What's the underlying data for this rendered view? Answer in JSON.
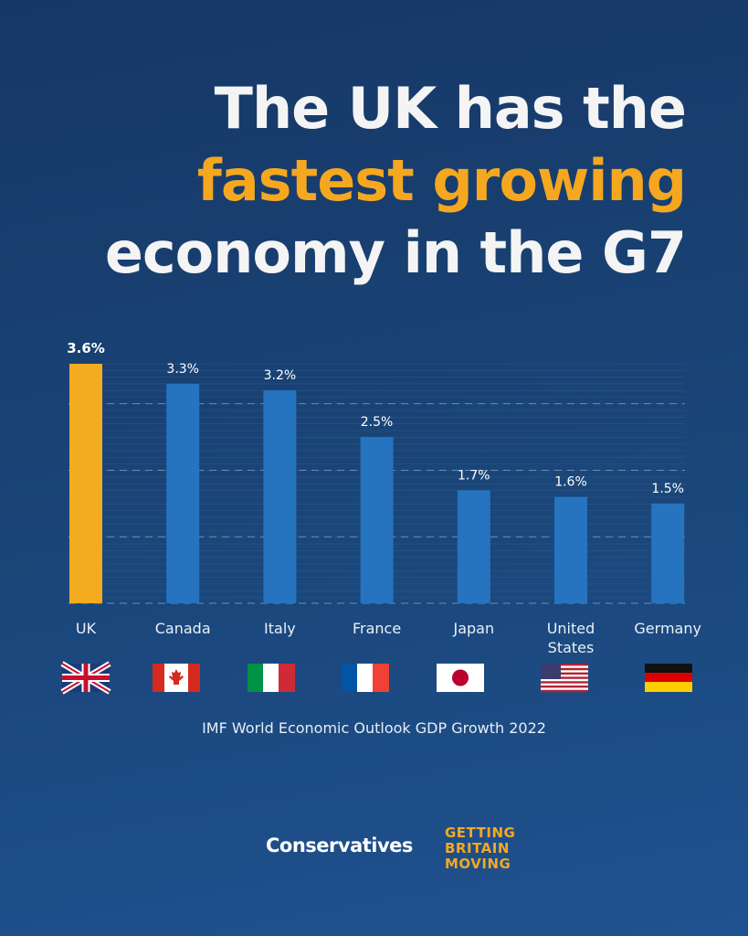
{
  "chart_data": {
    "type": "bar",
    "title_lines": [
      "The UK has the",
      "fastest growing",
      "economy in the G7"
    ],
    "categories": [
      "UK",
      "Canada",
      "Italy",
      "France",
      "Japan",
      "United States",
      "Germany"
    ],
    "values": [
      3.6,
      3.3,
      3.2,
      2.5,
      1.7,
      1.6,
      1.5
    ],
    "value_labels": [
      "3.6%",
      "3.3%",
      "3.2%",
      "2.5%",
      "1.7%",
      "1.6%",
      "1.5%"
    ],
    "colors": [
      "#f3ab1f",
      "#2673bf",
      "#2673bf",
      "#2673bf",
      "#2673bf",
      "#2673bf",
      "#2673bf"
    ],
    "ylim": [
      0,
      3.6
    ],
    "yticks": [
      0,
      1,
      2,
      3
    ],
    "grid": true,
    "source": "IMF World Economic Outlook GDP Growth 2022"
  },
  "footer": {
    "brand": "Conservatives",
    "slogan": [
      "GETTING",
      "BRITAIN",
      "MOVING"
    ]
  }
}
